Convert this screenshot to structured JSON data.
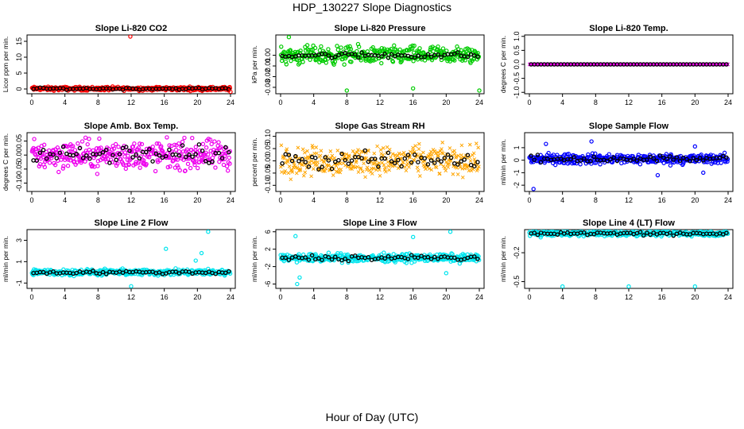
{
  "title": "HDP_130227  Slope Diagnostics",
  "xlabel": "Hour of Day (UTC)",
  "chart_data": [
    {
      "type": "scatter",
      "title": "Slope Li-820 CO2",
      "ylabel": "Licor ppm per min.",
      "color": "#ff0000",
      "symbol": "circle",
      "xlim": [
        0,
        24
      ],
      "xticks": [
        "0",
        "4",
        "8",
        "12",
        "16",
        "20",
        "24"
      ],
      "ylim": [
        -1.5,
        17
      ],
      "yticks": [
        0,
        5,
        10,
        15
      ],
      "ytick_labels": [
        "0",
        "5",
        "10",
        "15"
      ],
      "center": 0.1,
      "spread": 0.5,
      "black_spread": 0.3,
      "outliers": [
        {
          "x": 11.9,
          "y": 16.5
        },
        {
          "x": 24.0,
          "y": -0.9
        }
      ]
    },
    {
      "type": "scatter",
      "title": "Slope Li-820 Pressure",
      "ylabel": "kPa per min.",
      "color": "#00cc00",
      "symbol": "circle",
      "xlim": [
        0,
        24
      ],
      "xticks": [
        "0",
        "4",
        "8",
        "12",
        "16",
        "20",
        "24"
      ],
      "ylim": [
        -0.036,
        0.019
      ],
      "yticks": [
        0.0,
        -0.01,
        -0.02,
        -0.03
      ],
      "ytick_labels": [
        "0.00",
        "-0.01",
        "-0.02",
        "-0.03"
      ],
      "center": 0.0,
      "spread": 0.007,
      "black_spread": 0.003,
      "outliers": [
        {
          "x": 1.0,
          "y": 0.017
        },
        {
          "x": 8.0,
          "y": -0.033
        },
        {
          "x": 16.0,
          "y": -0.031
        },
        {
          "x": 24.0,
          "y": -0.033
        },
        {
          "x": 5.5,
          "y": -0.007
        }
      ]
    },
    {
      "type": "scatter",
      "title": "Slope Li-820 Temp.",
      "ylabel": "degrees C per min.",
      "color": "#ee00ee",
      "symbol": "cross",
      "xlim": [
        0,
        24
      ],
      "xticks": [
        "0",
        "4",
        "8",
        "12",
        "16",
        "20",
        "24"
      ],
      "ylim": [
        -1.05,
        1.05
      ],
      "yticks": [
        1.0,
        0.5,
        0.0,
        -0.5,
        -1.0
      ],
      "ytick_labels": [
        "1.0",
        "0.5",
        "0.0",
        "-0.5",
        "-1.0"
      ],
      "center": 0.0,
      "spread": 0.0,
      "black_spread": 0.0,
      "outliers": []
    },
    {
      "type": "scatter",
      "title": "Slope Amb. Box Temp.",
      "ylabel": "degrees C per min.",
      "color": "#ee00ee",
      "symbol": "circle",
      "xlim": [
        0,
        24
      ],
      "xticks": [
        "0",
        "4",
        "8",
        "12",
        "16",
        "20",
        "24"
      ],
      "ylim": [
        -0.13,
        0.08
      ],
      "yticks": [
        0.05,
        0.0,
        -0.05,
        -0.1
      ],
      "ytick_labels": [
        "0.05",
        "0.00",
        "-0.05",
        "-0.10"
      ],
      "center": 0.0,
      "spread": 0.045,
      "black_spread": 0.035,
      "outliers": []
    },
    {
      "type": "scatter",
      "title": "Slope Gas Stream RH",
      "ylabel": "percent per min.",
      "color": "#ffa500",
      "symbol": "cross",
      "xlim": [
        0,
        24
      ],
      "xticks": [
        "0",
        "4",
        "8",
        "12",
        "16",
        "20",
        "24"
      ],
      "ylim": [
        -0.125,
        0.115
      ],
      "yticks": [
        0.1,
        0.05,
        0.0,
        -0.05,
        -0.1
      ],
      "ytick_labels": [
        "0.10",
        "0.05",
        "0.00",
        "-0.05",
        "-0.10"
      ],
      "center": 0.0,
      "spread": 0.05,
      "black_spread": 0.04,
      "outliers": []
    },
    {
      "type": "scatter",
      "title": "Slope Sample Flow",
      "ylabel": "ml/min per min.",
      "color": "#0000ff",
      "symbol": "circle",
      "xlim": [
        0,
        24
      ],
      "xticks": [
        "0",
        "4",
        "8",
        "12",
        "16",
        "20",
        "24"
      ],
      "ylim": [
        -2.5,
        2.2
      ],
      "yticks": [
        1,
        0,
        -1,
        -2
      ],
      "ytick_labels": [
        "1",
        "0",
        "-1",
        "-2"
      ],
      "center": 0.1,
      "spread": 0.35,
      "black_spread": 0.3,
      "outliers": [
        {
          "x": 0.5,
          "y": -2.3
        },
        {
          "x": 2.0,
          "y": 1.3
        },
        {
          "x": 7.5,
          "y": 1.5
        },
        {
          "x": 15.5,
          "y": -1.2
        },
        {
          "x": 20.0,
          "y": 1.1
        },
        {
          "x": 21.0,
          "y": -1.0
        }
      ]
    },
    {
      "type": "scatter",
      "title": "Slope Line 2 Flow",
      "ylabel": "ml/min per min.",
      "color": "#00e5ee",
      "symbol": "circle",
      "xlim": [
        0,
        24
      ],
      "xticks": [
        "0",
        "4",
        "8",
        "12",
        "16",
        "20",
        "24"
      ],
      "ylim": [
        -1.5,
        4.0
      ],
      "yticks": [
        3,
        1,
        -1
      ],
      "ytick_labels": [
        "3",
        "1",
        "-1"
      ],
      "center": 0.0,
      "spread": 0.25,
      "black_spread": 0.15,
      "outliers": [
        {
          "x": 16.2,
          "y": 2.2
        },
        {
          "x": 21.3,
          "y": 3.8
        },
        {
          "x": 12.0,
          "y": -1.3
        },
        {
          "x": 20.5,
          "y": 1.8
        },
        {
          "x": 19.8,
          "y": 1.1
        }
      ]
    },
    {
      "type": "scatter",
      "title": "Slope Line 3 Flow",
      "ylabel": "ml/min per min.",
      "color": "#00e5ee",
      "symbol": "circle",
      "xlim": [
        0,
        24
      ],
      "xticks": [
        "0",
        "4",
        "8",
        "12",
        "16",
        "20",
        "24"
      ],
      "ylim": [
        -7,
        6.5
      ],
      "yticks": [
        6,
        2,
        -2,
        -6
      ],
      "ytick_labels": [
        "6",
        "2",
        "-2",
        "-6"
      ],
      "center": 0.0,
      "spread": 0.8,
      "black_spread": 0.7,
      "outliers": [
        {
          "x": 1.8,
          "y": 5.0
        },
        {
          "x": 2.0,
          "y": -6.0
        },
        {
          "x": 16.0,
          "y": 4.8
        },
        {
          "x": 20.5,
          "y": 6.0
        },
        {
          "x": 2.3,
          "y": -4.5
        },
        {
          "x": 20.0,
          "y": -3.5
        }
      ]
    },
    {
      "type": "scatter",
      "title": "Slope Line 4 (LT) Flow",
      "ylabel": "ml/min per min.",
      "color": "#00e5ee",
      "symbol": "circle",
      "xlim": [
        0,
        24
      ],
      "xticks": [
        "0",
        "4",
        "8",
        "12",
        "16",
        "20",
        "24"
      ],
      "ylim": [
        -0.57,
        0.04
      ],
      "yticks": [
        -0.2,
        -0.5
      ],
      "ytick_labels": [
        "-0.2",
        "-0.5"
      ],
      "center": 0.0,
      "spread": 0.025,
      "black_spread": 0.02,
      "outliers": [
        {
          "x": 4.0,
          "y": -0.55
        },
        {
          "x": 12.0,
          "y": -0.55
        },
        {
          "x": 20.0,
          "y": -0.55
        }
      ]
    }
  ]
}
